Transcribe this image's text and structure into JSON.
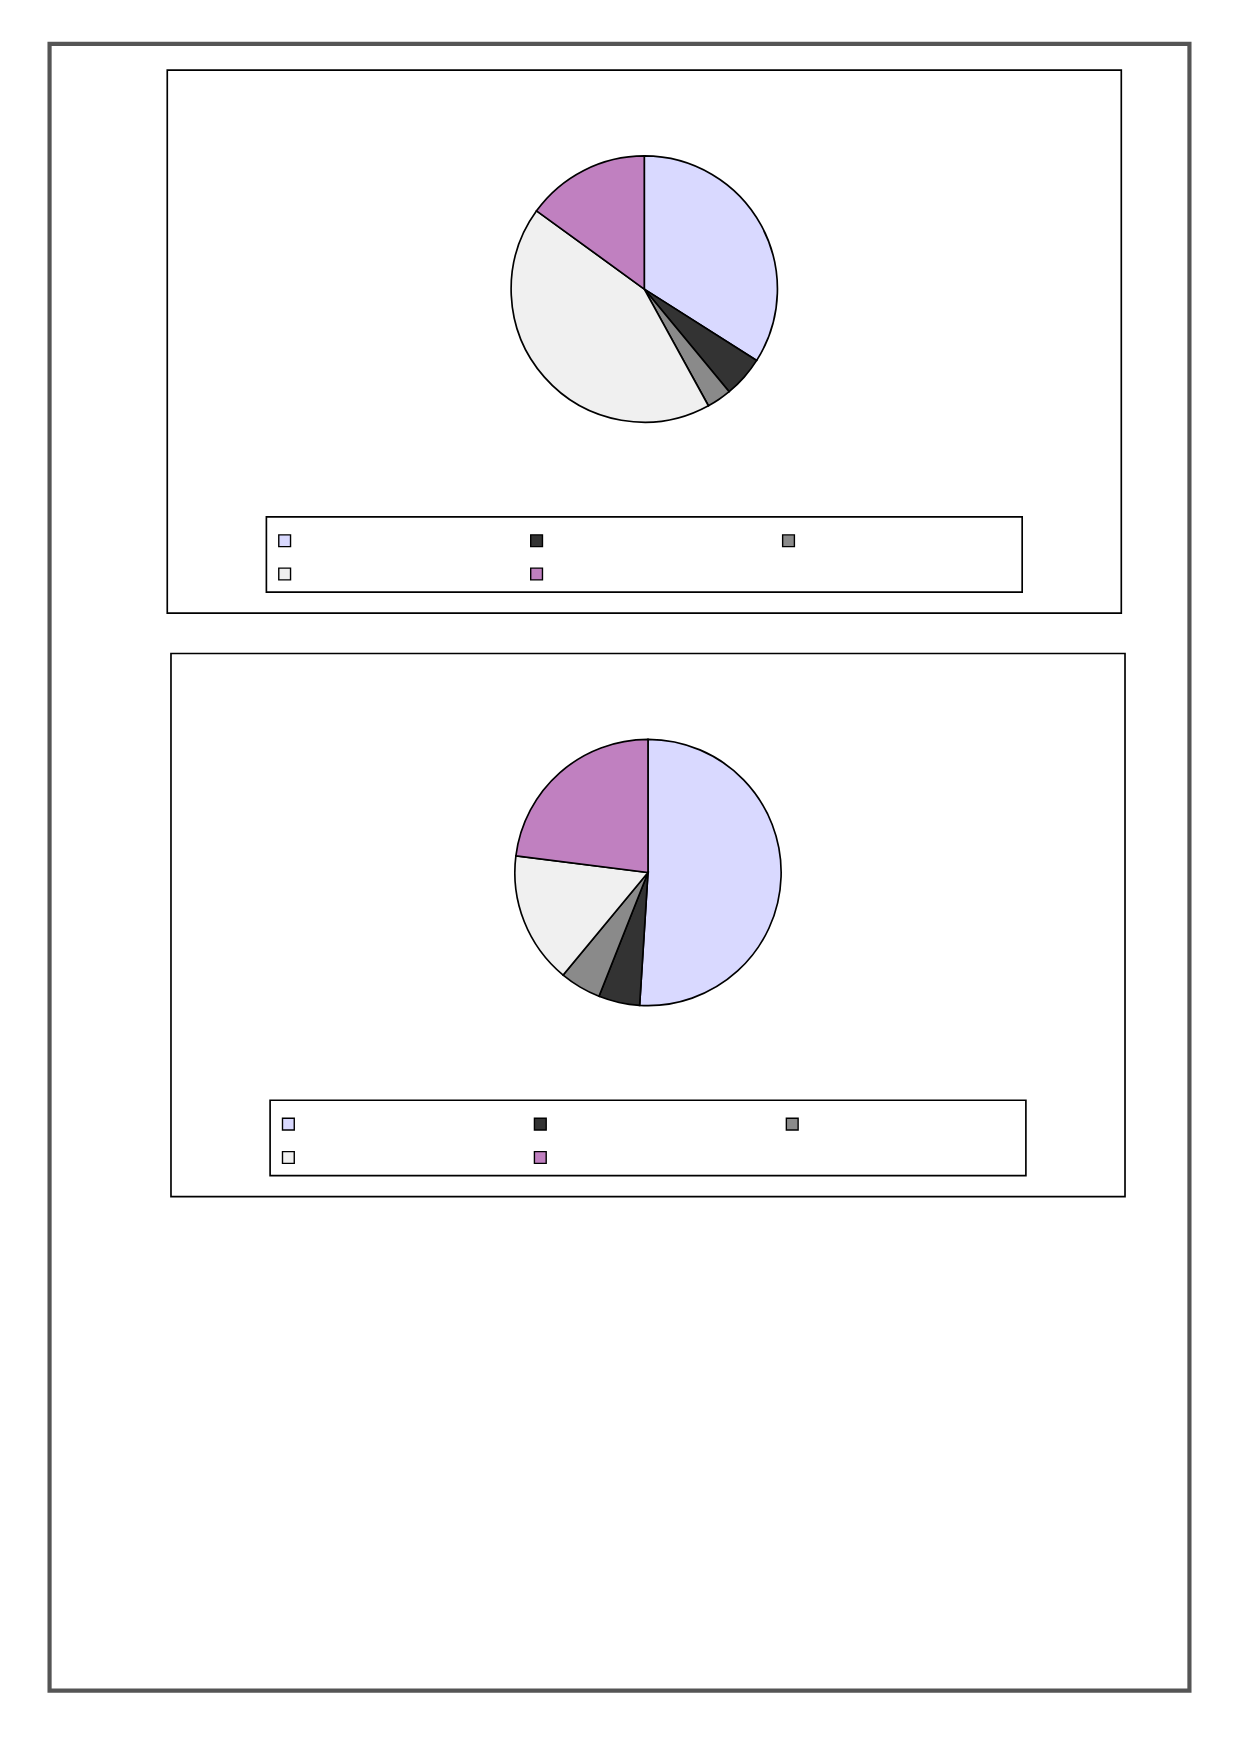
{
  "chart_data": [
    {
      "type": "pie",
      "categories": [
        null,
        null,
        null,
        null,
        null
      ],
      "values": [
        34,
        5,
        3,
        43,
        15
      ],
      "colors": [
        "#d9d9ff",
        "#333333",
        "#8a8a8a",
        "#f0f0f0",
        "#c080c0"
      ]
    },
    {
      "type": "pie",
      "categories": [
        null,
        null,
        null,
        null,
        null
      ],
      "values": [
        51,
        5,
        5,
        16,
        23
      ],
      "colors": [
        "#d9d9ff",
        "#333333",
        "#8a8a8a",
        "#f0f0f0",
        "#c080c0"
      ]
    }
  ]
}
